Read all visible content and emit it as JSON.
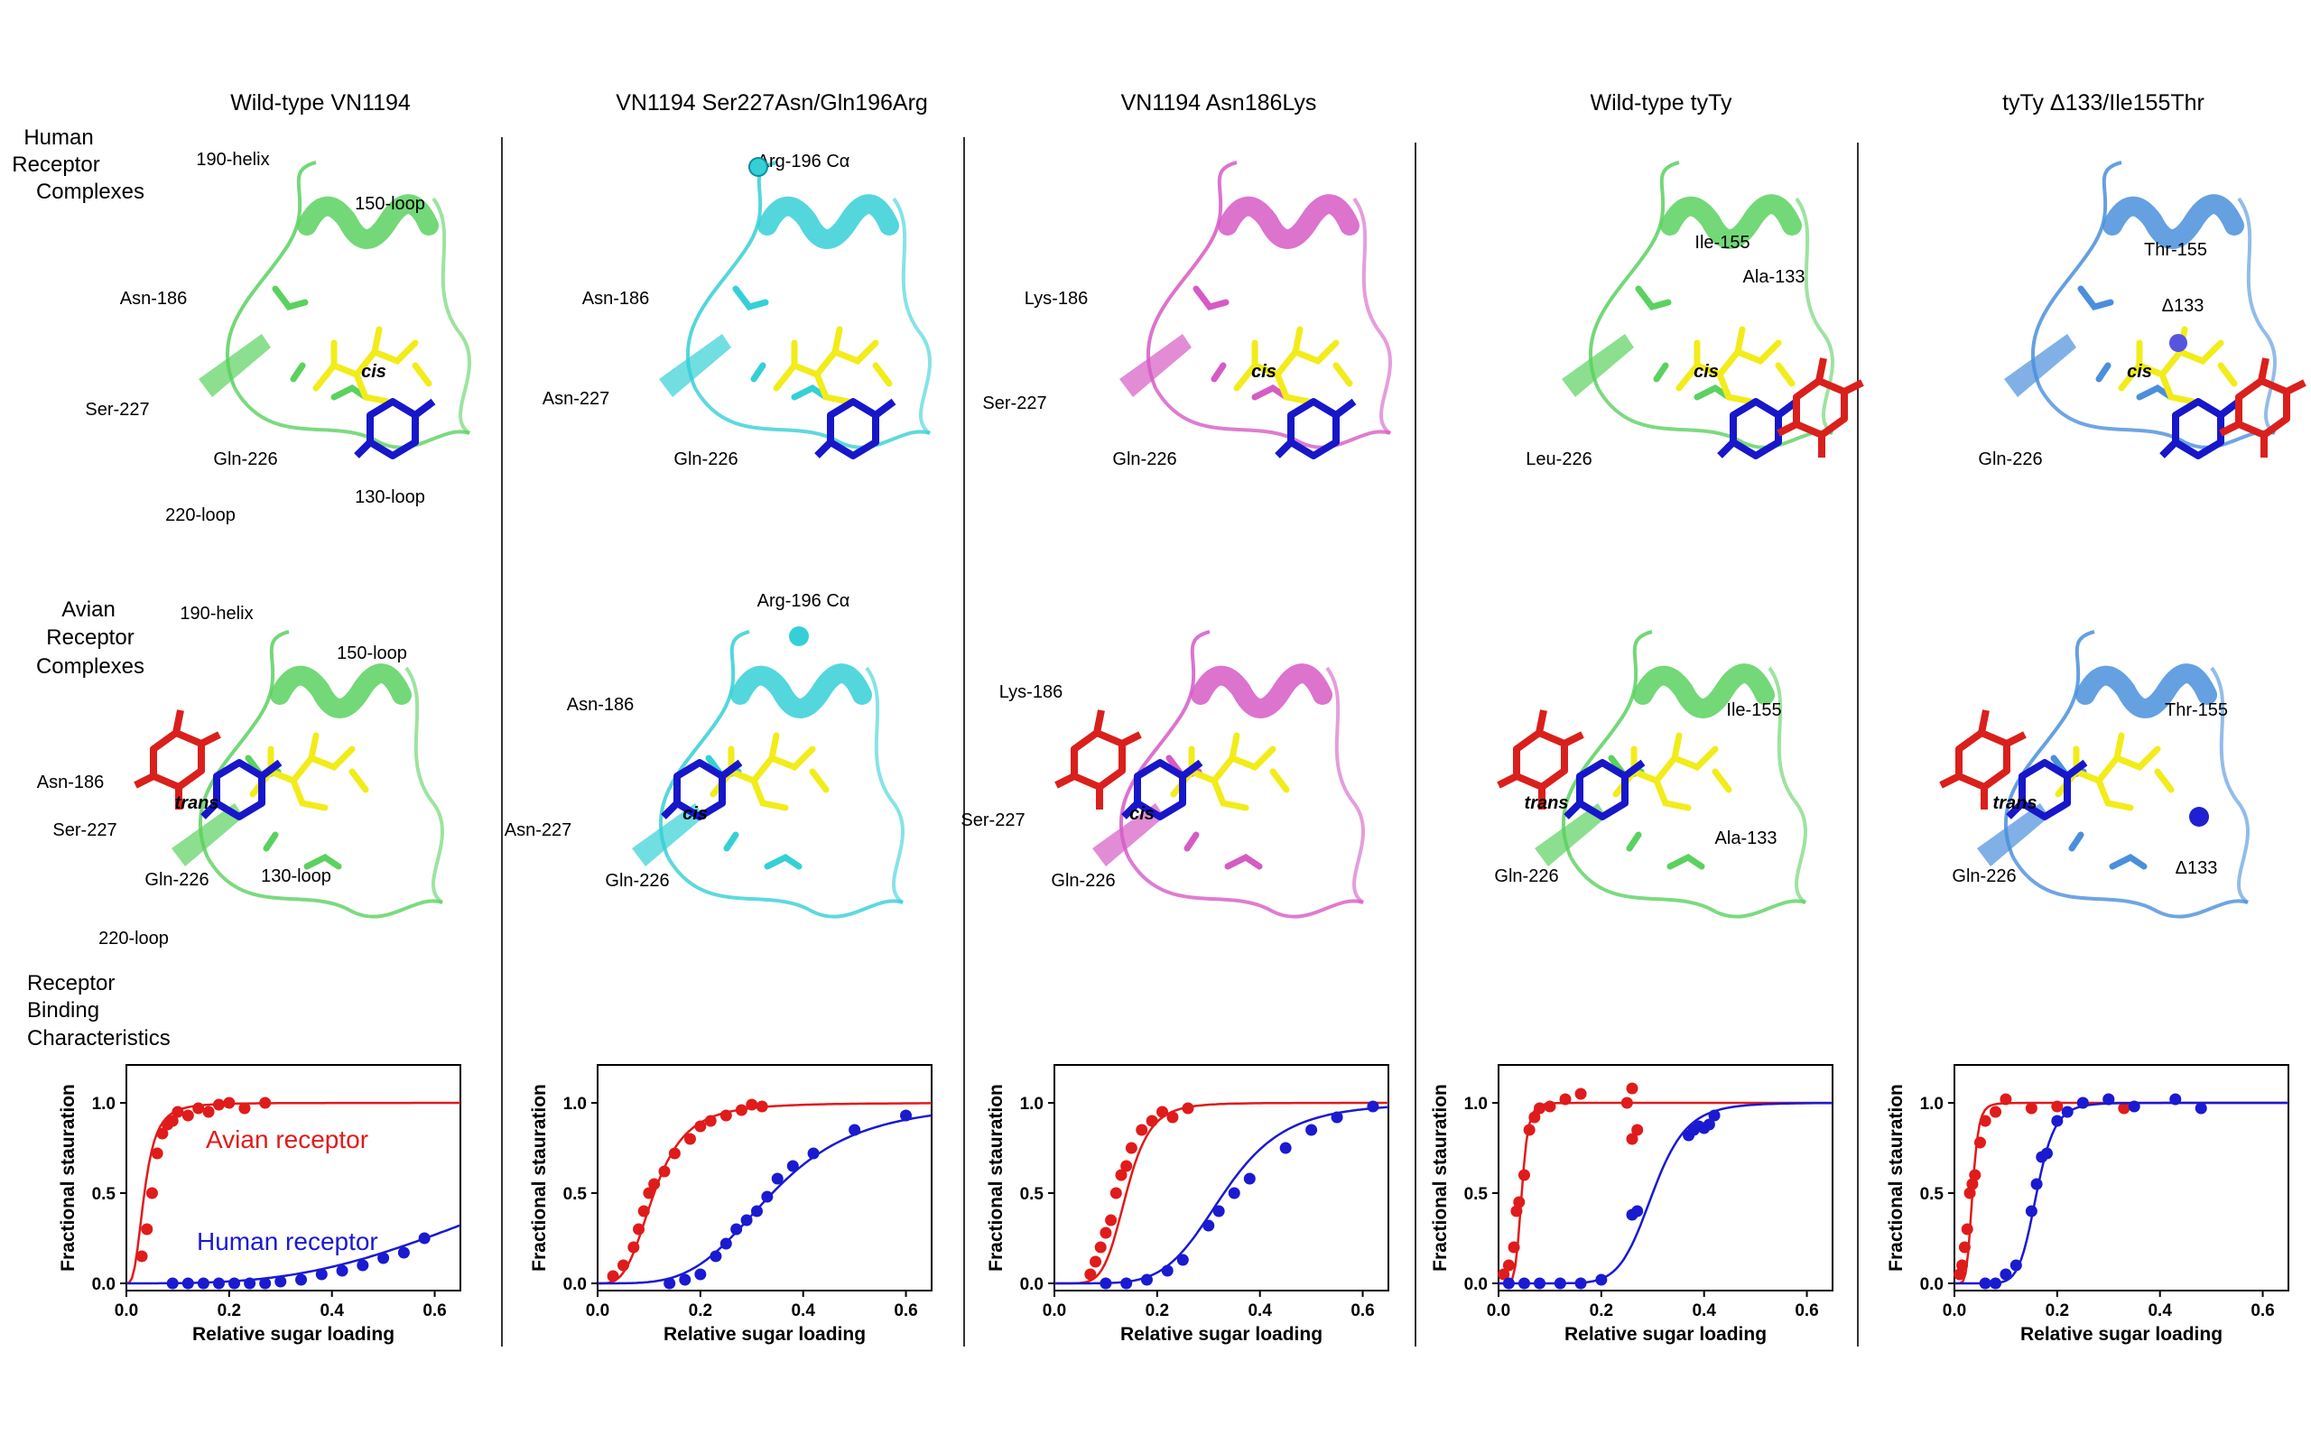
{
  "row_labels": {
    "human": [
      "Human",
      "Receptor",
      "Complexes"
    ],
    "avian": [
      "Avian",
      "Receptor",
      "Complexes"
    ],
    "binding": [
      "Receptor",
      "Binding",
      "Characteristics"
    ]
  },
  "colors": {
    "wildtype_green": "#5bd160",
    "mutant_cyan": "#35d0d6",
    "mutant_magenta": "#d65bc4",
    "tyty_blue": "#4a8fdc",
    "ligand_yellow": "#f2ec1a",
    "ligand_blue": "#1717c9",
    "ligand_red": "#d9201c",
    "avian_curve": "#e01b1b",
    "human_curve": "#1a1ad0"
  },
  "panels": [
    {
      "title": "Wild-type VN1194",
      "protein_color": "wildtype_green",
      "human_labels": [
        "190-helix",
        "150-loop",
        "Asn-186",
        "Ser-227",
        "Gln-226",
        "220-loop",
        "130-loop",
        "cis"
      ],
      "avian_labels": [
        "190-helix",
        "150-loop",
        "Asn-186",
        "Ser-227",
        "Gln-226",
        "130-loop",
        "220-loop",
        "trans"
      ],
      "series_text": {
        "avian": "Avian receptor",
        "human": "Human receptor"
      }
    },
    {
      "title": "VN1194 Ser227Asn/Gln196Arg",
      "protein_color": "mutant_cyan",
      "human_labels": [
        "Arg-196 Cα",
        "Asn-186",
        "Asn-227",
        "Gln-226",
        "cis"
      ],
      "avian_labels": [
        "Arg-196 Cα",
        "Asn-186",
        "Asn-227",
        "Gln-226",
        "cis"
      ]
    },
    {
      "title": "VN1194 Asn186Lys",
      "protein_color": "mutant_magenta",
      "human_labels": [
        "Lys-186",
        "Ser-227",
        "Gln-226",
        "cis"
      ],
      "avian_labels": [
        "Lys-186",
        "Ser-227",
        "Gln-226",
        "cis"
      ]
    },
    {
      "title": "Wild-type tyTy",
      "protein_color": "wildtype_green",
      "human_labels": [
        "Ile-155",
        "Ala-133",
        "Leu-226",
        "cis"
      ],
      "avian_labels": [
        "Ile-155",
        "Ala-133",
        "Gln-226",
        "trans"
      ]
    },
    {
      "title": "tyTy Δ133/Ile155Thr",
      "protein_color": "tyty_blue",
      "human_labels": [
        "Thr-155",
        "Δ133",
        "Gln-226",
        "cis"
      ],
      "avian_labels": [
        "Thr-155",
        "Δ133",
        "Gln-226",
        "trans"
      ]
    }
  ],
  "chart_data": [
    {
      "type": "scatter",
      "xlabel": "Relative sugar loading",
      "ylabel": "Fractional stauration",
      "xlim": [
        0,
        0.65
      ],
      "ylim": [
        0,
        1.0
      ],
      "xticks": [
        "0.0",
        "0.2",
        "0.4",
        "0.6"
      ],
      "yticks": [
        "0.0",
        "0.5",
        "1.0"
      ],
      "series": [
        {
          "name": "Avian receptor",
          "color": "#e01b1b",
          "fit_k": 0.035,
          "fit_n": 3,
          "points": [
            [
              0.03,
              0.15
            ],
            [
              0.04,
              0.3
            ],
            [
              0.05,
              0.5
            ],
            [
              0.06,
              0.72
            ],
            [
              0.07,
              0.83
            ],
            [
              0.08,
              0.88
            ],
            [
              0.09,
              0.9
            ],
            [
              0.1,
              0.95
            ],
            [
              0.12,
              0.93
            ],
            [
              0.14,
              0.97
            ],
            [
              0.16,
              0.95
            ],
            [
              0.18,
              0.99
            ],
            [
              0.2,
              1.0
            ],
            [
              0.23,
              0.97
            ],
            [
              0.27,
              1.0
            ]
          ]
        },
        {
          "name": "Human receptor",
          "color": "#1a1ad0",
          "fit_k": 0.82,
          "fit_n": 3.2,
          "points": [
            [
              0.09,
              0.0
            ],
            [
              0.12,
              0.0
            ],
            [
              0.15,
              0.0
            ],
            [
              0.18,
              0.0
            ],
            [
              0.21,
              0.0
            ],
            [
              0.24,
              0.0
            ],
            [
              0.27,
              0.0
            ],
            [
              0.3,
              0.01
            ],
            [
              0.34,
              0.02
            ],
            [
              0.38,
              0.05
            ],
            [
              0.42,
              0.07
            ],
            [
              0.46,
              0.1
            ],
            [
              0.5,
              0.14
            ],
            [
              0.54,
              0.17
            ],
            [
              0.58,
              0.25
            ]
          ]
        }
      ]
    },
    {
      "type": "scatter",
      "xlabel": "Relative sugar loading",
      "ylabel": "Fractional stauration",
      "xlim": [
        0,
        0.65
      ],
      "ylim": [
        0,
        1.0
      ],
      "xticks": [
        "0.0",
        "0.2",
        "0.4",
        "0.6"
      ],
      "yticks": [
        "0.0",
        "0.5",
        "1.0"
      ],
      "series": [
        {
          "color": "#e01b1b",
          "fit_k": 0.11,
          "fit_n": 3.5,
          "points": [
            [
              0.03,
              0.04
            ],
            [
              0.05,
              0.1
            ],
            [
              0.07,
              0.2
            ],
            [
              0.08,
              0.3
            ],
            [
              0.09,
              0.4
            ],
            [
              0.1,
              0.5
            ],
            [
              0.11,
              0.55
            ],
            [
              0.13,
              0.62
            ],
            [
              0.15,
              0.72
            ],
            [
              0.18,
              0.8
            ],
            [
              0.2,
              0.87
            ],
            [
              0.22,
              0.9
            ],
            [
              0.25,
              0.93
            ],
            [
              0.28,
              0.96
            ],
            [
              0.3,
              0.99
            ],
            [
              0.32,
              0.98
            ]
          ]
        },
        {
          "color": "#1a1ad0",
          "fit_k": 0.34,
          "fit_n": 4,
          "points": [
            [
              0.14,
              0.0
            ],
            [
              0.17,
              0.02
            ],
            [
              0.2,
              0.05
            ],
            [
              0.23,
              0.15
            ],
            [
              0.25,
              0.22
            ],
            [
              0.27,
              0.3
            ],
            [
              0.29,
              0.35
            ],
            [
              0.31,
              0.4
            ],
            [
              0.33,
              0.48
            ],
            [
              0.35,
              0.58
            ],
            [
              0.38,
              0.65
            ],
            [
              0.42,
              0.72
            ],
            [
              0.5,
              0.85
            ],
            [
              0.6,
              0.93
            ]
          ]
        }
      ]
    },
    {
      "type": "scatter",
      "xlabel": "Relative sugar loading",
      "ylabel": "Fractional stauration",
      "xlim": [
        0,
        0.65
      ],
      "ylim": [
        0,
        1.0
      ],
      "xticks": [
        "0.0",
        "0.2",
        "0.4",
        "0.6"
      ],
      "yticks": [
        "0.0",
        "0.5",
        "1.0"
      ],
      "series": [
        {
          "color": "#e01b1b",
          "fit_k": 0.14,
          "fit_n": 6,
          "points": [
            [
              0.07,
              0.05
            ],
            [
              0.08,
              0.12
            ],
            [
              0.09,
              0.2
            ],
            [
              0.1,
              0.28
            ],
            [
              0.11,
              0.35
            ],
            [
              0.12,
              0.5
            ],
            [
              0.13,
              0.6
            ],
            [
              0.14,
              0.65
            ],
            [
              0.15,
              0.75
            ],
            [
              0.17,
              0.85
            ],
            [
              0.19,
              0.9
            ],
            [
              0.21,
              0.95
            ],
            [
              0.23,
              0.92
            ],
            [
              0.26,
              0.97
            ]
          ]
        },
        {
          "color": "#1a1ad0",
          "fit_k": 0.33,
          "fit_n": 5.5,
          "points": [
            [
              0.1,
              0.0
            ],
            [
              0.14,
              0.0
            ],
            [
              0.18,
              0.02
            ],
            [
              0.22,
              0.07
            ],
            [
              0.25,
              0.13
            ],
            [
              0.3,
              0.32
            ],
            [
              0.32,
              0.4
            ],
            [
              0.35,
              0.5
            ],
            [
              0.38,
              0.58
            ],
            [
              0.45,
              0.75
            ],
            [
              0.5,
              0.85
            ],
            [
              0.55,
              0.92
            ],
            [
              0.62,
              0.98
            ]
          ]
        }
      ]
    },
    {
      "type": "scatter",
      "xlabel": "Relative sugar loading",
      "ylabel": "Fractional stauration",
      "xlim": [
        0,
        0.65
      ],
      "ylim": [
        0,
        1.0
      ],
      "xticks": [
        "0.0",
        "0.2",
        "0.4",
        "0.6"
      ],
      "yticks": [
        "0.0",
        "0.5",
        "1.0"
      ],
      "series": [
        {
          "color": "#e01b1b",
          "fit_k": 0.045,
          "fit_n": 7,
          "points": [
            [
              0.01,
              0.05
            ],
            [
              0.02,
              0.1
            ],
            [
              0.03,
              0.2
            ],
            [
              0.035,
              0.4
            ],
            [
              0.04,
              0.45
            ],
            [
              0.05,
              0.6
            ],
            [
              0.06,
              0.85
            ],
            [
              0.07,
              0.92
            ],
            [
              0.08,
              0.97
            ],
            [
              0.1,
              0.98
            ],
            [
              0.13,
              1.02
            ],
            [
              0.16,
              1.05
            ],
            [
              0.25,
              1.0
            ],
            [
              0.26,
              1.08
            ],
            [
              0.27,
              0.85
            ],
            [
              0.26,
              0.8
            ]
          ]
        },
        {
          "color": "#1a1ad0",
          "fit_k": 0.3,
          "fit_n": 9,
          "points": [
            [
              0.02,
              0.0
            ],
            [
              0.05,
              0.0
            ],
            [
              0.08,
              0.0
            ],
            [
              0.12,
              0.0
            ],
            [
              0.16,
              0.0
            ],
            [
              0.2,
              0.02
            ],
            [
              0.26,
              0.38
            ],
            [
              0.27,
              0.4
            ],
            [
              0.37,
              0.82
            ],
            [
              0.38,
              0.85
            ],
            [
              0.39,
              0.87
            ],
            [
              0.4,
              0.86
            ],
            [
              0.41,
              0.88
            ],
            [
              0.42,
              0.93
            ]
          ]
        }
      ]
    },
    {
      "type": "scatter",
      "xlabel": "Relative sugar loading",
      "ylabel": "Fractional stauration",
      "xlim": [
        0,
        0.65
      ],
      "ylim": [
        0,
        1.0
      ],
      "xticks": [
        "0.0",
        "0.2",
        "0.4",
        "0.6"
      ],
      "yticks": [
        "0.0",
        "0.5",
        "1.0"
      ],
      "series": [
        {
          "color": "#e01b1b",
          "fit_k": 0.035,
          "fit_n": 6,
          "points": [
            [
              0.01,
              0.05
            ],
            [
              0.015,
              0.1
            ],
            [
              0.02,
              0.2
            ],
            [
              0.025,
              0.3
            ],
            [
              0.03,
              0.5
            ],
            [
              0.035,
              0.55
            ],
            [
              0.04,
              0.6
            ],
            [
              0.05,
              0.78
            ],
            [
              0.06,
              0.9
            ],
            [
              0.08,
              0.95
            ],
            [
              0.1,
              1.02
            ],
            [
              0.15,
              0.97
            ],
            [
              0.2,
              0.98
            ],
            [
              0.25,
              1.0
            ],
            [
              0.3,
              1.02
            ],
            [
              0.33,
              0.97
            ]
          ]
        },
        {
          "color": "#1a1ad0",
          "fit_k": 0.16,
          "fit_n": 9,
          "points": [
            [
              0.06,
              0.0
            ],
            [
              0.08,
              0.0
            ],
            [
              0.1,
              0.05
            ],
            [
              0.12,
              0.1
            ],
            [
              0.15,
              0.4
            ],
            [
              0.16,
              0.55
            ],
            [
              0.17,
              0.7
            ],
            [
              0.18,
              0.72
            ],
            [
              0.2,
              0.9
            ],
            [
              0.22,
              0.95
            ],
            [
              0.25,
              1.0
            ],
            [
              0.3,
              1.02
            ],
            [
              0.35,
              0.98
            ],
            [
              0.43,
              1.02
            ],
            [
              0.48,
              0.97
            ]
          ]
        }
      ]
    }
  ]
}
